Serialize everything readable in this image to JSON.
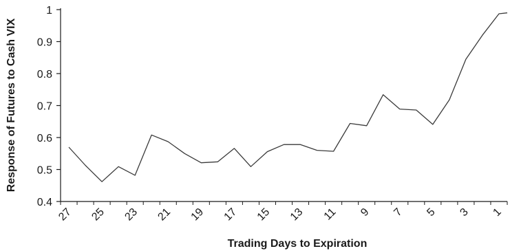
{
  "chart_data": {
    "type": "line",
    "xlabel": "Trading Days to Expiration",
    "ylabel": "Response of Futures to Cash VIX",
    "ylim": [
      0.4,
      1.0
    ],
    "xlim": [
      27.5,
      0.5
    ],
    "x_reversed": true,
    "grid": false,
    "yticks": [
      0.4,
      0.5,
      0.6,
      0.7,
      0.8,
      0.9,
      1.0
    ],
    "ytick_labels": [
      "0.4",
      "0.5",
      "0.6",
      "0.7",
      "0.8",
      "0.9",
      "1"
    ],
    "xticks": [
      27,
      25,
      23,
      21,
      19,
      17,
      15,
      13,
      11,
      9,
      7,
      5,
      3,
      1
    ],
    "xtick_labels": [
      "27",
      "25",
      "23",
      "21",
      "19",
      "17",
      "15",
      "13",
      "11",
      "9",
      "7",
      "5",
      "3",
      "1"
    ],
    "series": [
      {
        "x": [
          27,
          26,
          25,
          24,
          23,
          22,
          21,
          20,
          19,
          18,
          17,
          16,
          15,
          14,
          13,
          12,
          11,
          10,
          9,
          8,
          7,
          6,
          5,
          4,
          3,
          2,
          1,
          0.5
        ],
        "values": [
          0.57,
          0.513,
          0.462,
          0.509,
          0.482,
          0.608,
          0.587,
          0.55,
          0.521,
          0.524,
          0.566,
          0.509,
          0.556,
          0.578,
          0.578,
          0.56,
          0.557,
          0.644,
          0.637,
          0.734,
          0.689,
          0.686,
          0.641,
          0.718,
          0.845,
          0.92,
          0.987,
          0.99
        ]
      }
    ],
    "line_color": "#3a3a3a",
    "axis_color": "#1a1a1a"
  }
}
